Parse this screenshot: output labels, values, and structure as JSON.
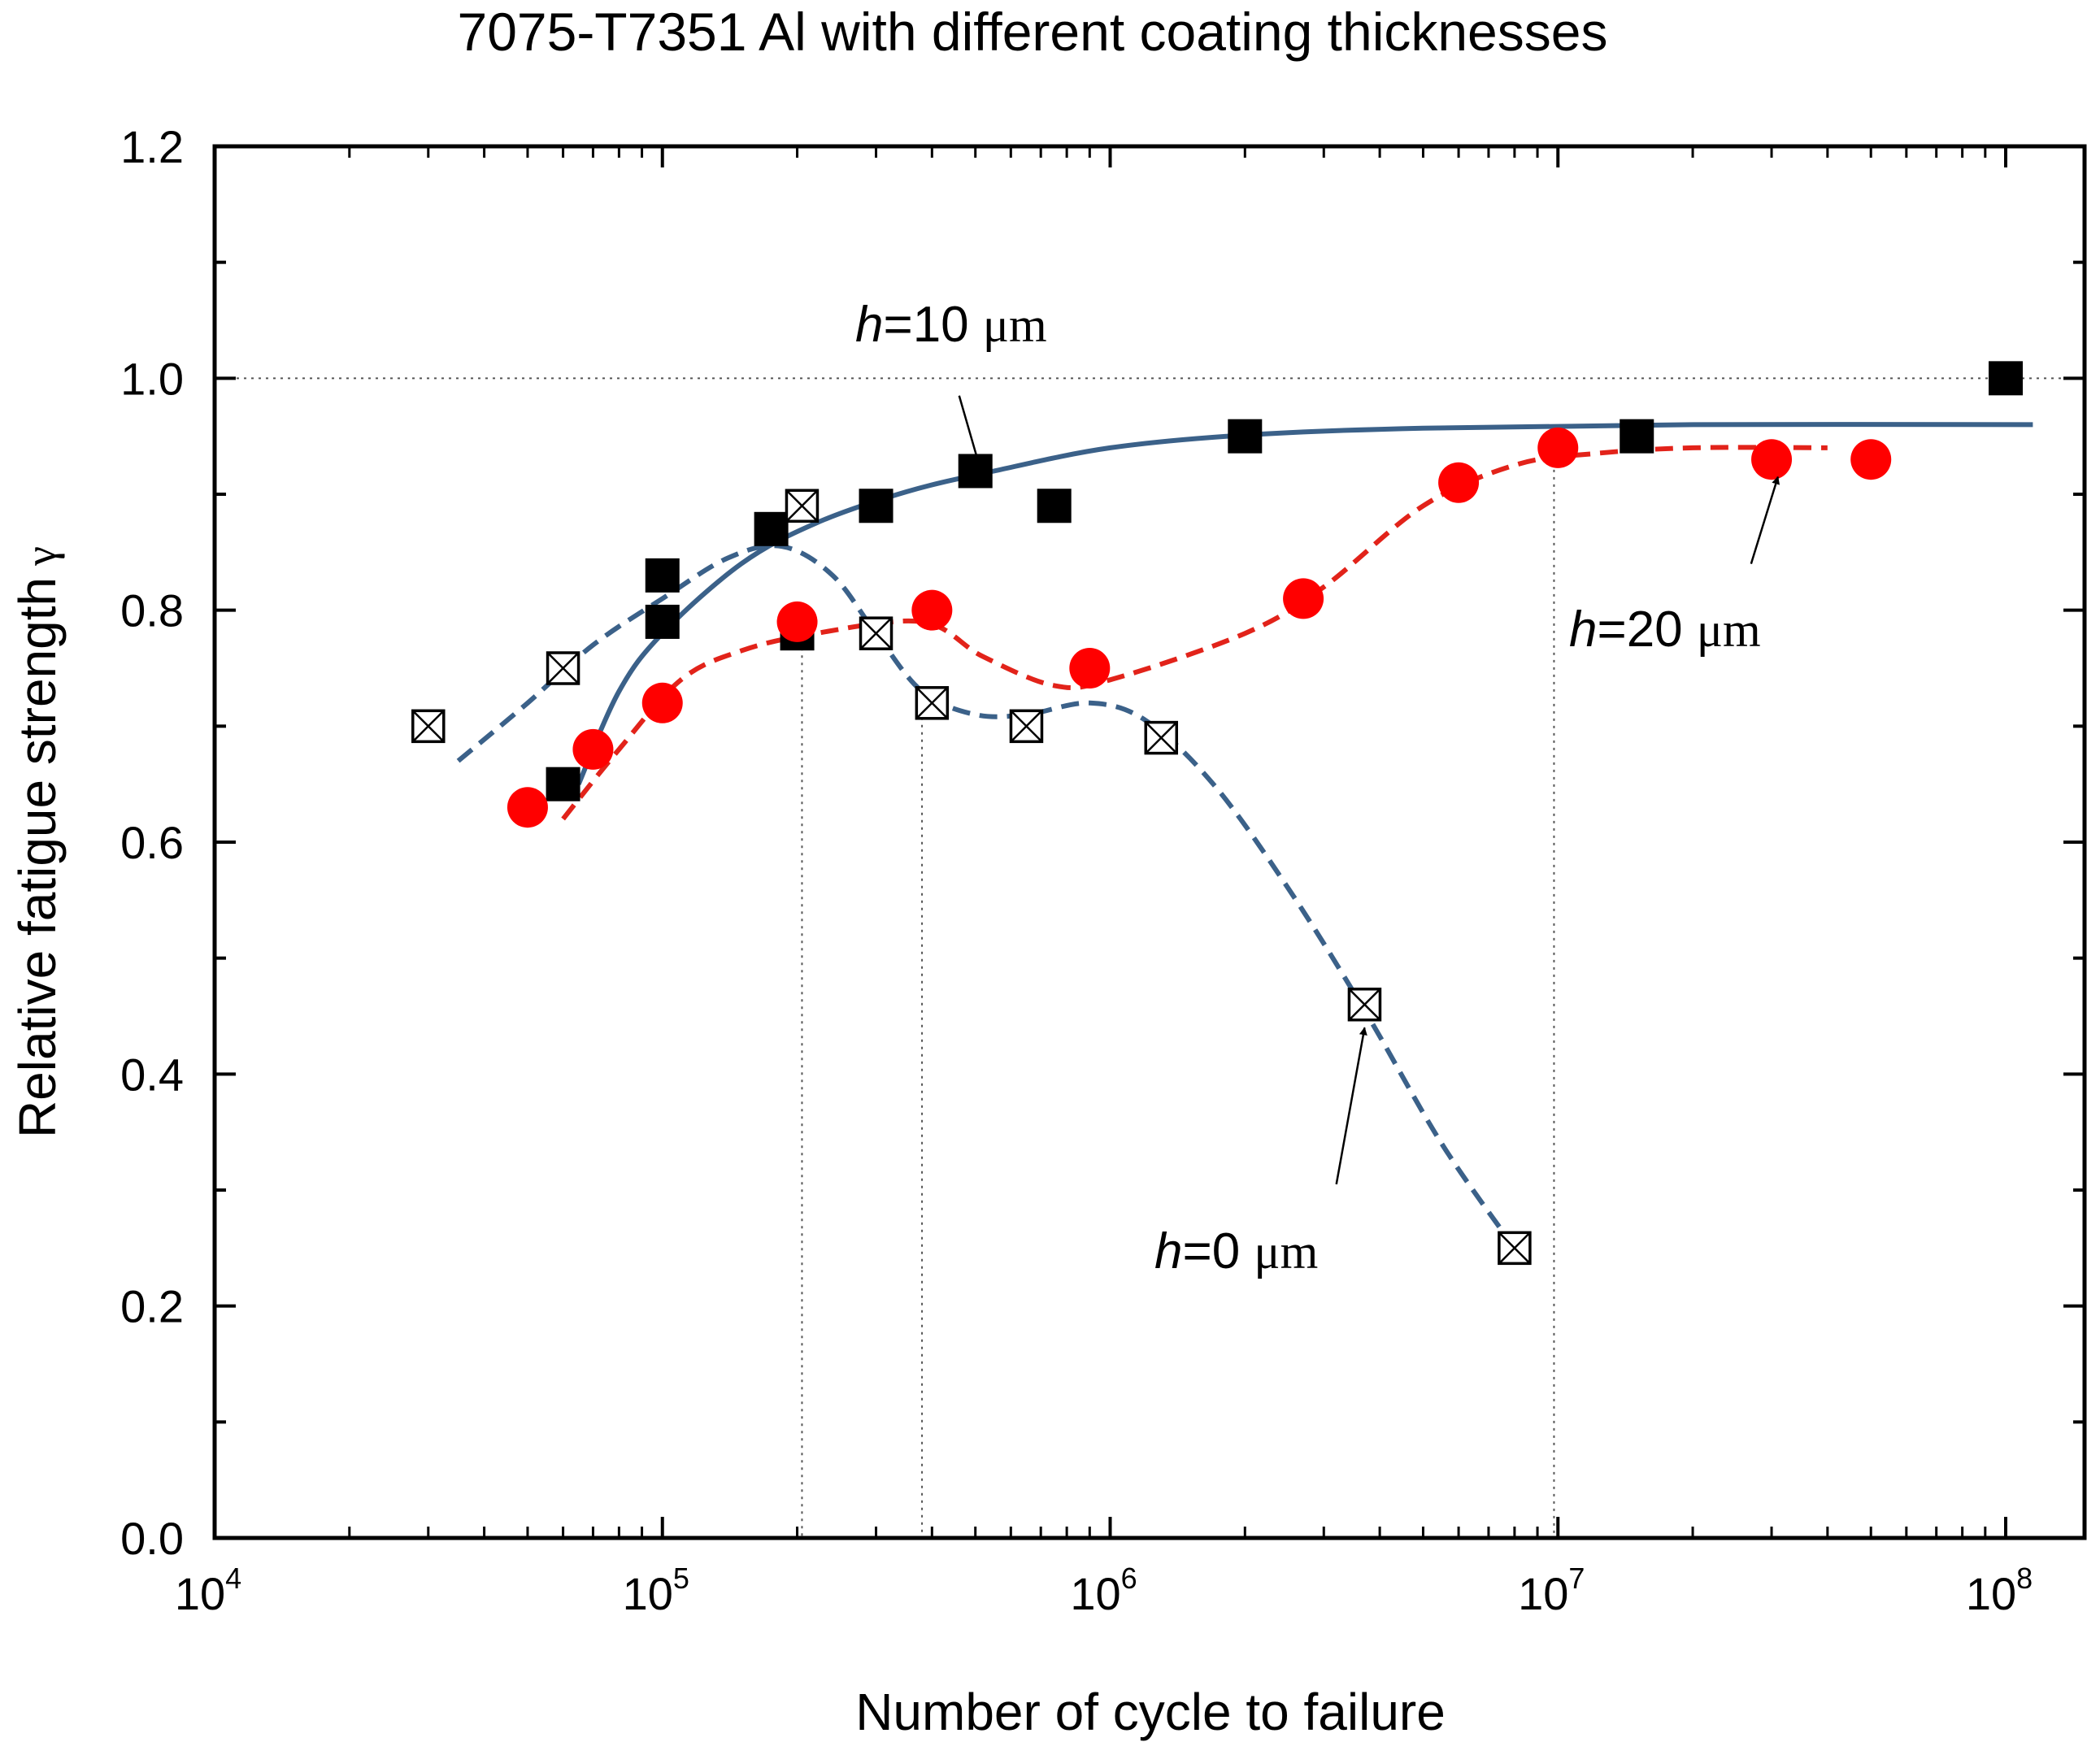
{
  "chart_data": {
    "type": "scatter",
    "title": "7075-T7351 Al with different coating thicknesses",
    "xlabel": "Number of cycle to failure",
    "ylabel": "Relative fatigue strength",
    "ylabel_symbol": "γ",
    "xscale": "log",
    "xlim": [
      10000,
      150000000
    ],
    "ylim": [
      0.0,
      1.2
    ],
    "x_ticks": [
      {
        "value": 10000,
        "base": "10",
        "exp": "4"
      },
      {
        "value": 100000,
        "base": "10",
        "exp": "5"
      },
      {
        "value": 1000000,
        "base": "10",
        "exp": "6"
      },
      {
        "value": 10000000,
        "base": "10",
        "exp": "7"
      },
      {
        "value": 100000000,
        "base": "10",
        "exp": "8"
      }
    ],
    "y_ticks": [
      {
        "value": 0.0,
        "label": "0.0"
      },
      {
        "value": 0.2,
        "label": "0.2"
      },
      {
        "value": 0.4,
        "label": "0.4"
      },
      {
        "value": 0.6,
        "label": "0.6"
      },
      {
        "value": 0.8,
        "label": "0.8"
      },
      {
        "value": 1.0,
        "label": "1.0"
      },
      {
        "value": 1.2,
        "label": "1.2"
      }
    ],
    "reference_line": {
      "y": 1.0,
      "style": "dotted"
    },
    "reference_verticals": [
      {
        "x": 205000,
        "y_top": 0.78
      },
      {
        "x": 380000,
        "y_top": 0.72
      },
      {
        "x": 9800000,
        "y_top": 0.94
      }
    ],
    "series": [
      {
        "name": "h=10 μm",
        "marker": "filled-square",
        "color": "#000000",
        "line_color": "#3b6189",
        "line_style": "solid",
        "points": [
          {
            "x": 60000,
            "y": 0.65
          },
          {
            "x": 100000,
            "y": 0.83
          },
          {
            "x": 100000,
            "y": 0.79
          },
          {
            "x": 175000,
            "y": 0.87
          },
          {
            "x": 200000,
            "y": 0.78
          },
          {
            "x": 300000,
            "y": 0.89
          },
          {
            "x": 500000,
            "y": 0.92
          },
          {
            "x": 750000,
            "y": 0.89
          },
          {
            "x": 2000000,
            "y": 0.95
          },
          {
            "x": 15000000,
            "y": 0.95
          },
          {
            "x": 100000000,
            "y": 1.0
          }
        ],
        "fit_curve": [
          {
            "x": 65000,
            "y": 0.65
          },
          {
            "x": 80000,
            "y": 0.73
          },
          {
            "x": 100000,
            "y": 0.78
          },
          {
            "x": 150000,
            "y": 0.84
          },
          {
            "x": 220000,
            "y": 0.875
          },
          {
            "x": 350000,
            "y": 0.902
          },
          {
            "x": 550000,
            "y": 0.92
          },
          {
            "x": 1000000,
            "y": 0.94
          },
          {
            "x": 2000000,
            "y": 0.951
          },
          {
            "x": 5000000,
            "y": 0.957
          },
          {
            "x": 20000000,
            "y": 0.96
          },
          {
            "x": 115000000,
            "y": 0.96
          }
        ]
      },
      {
        "name": "h=20 μm",
        "marker": "filled-circle",
        "color": "#ff0000",
        "line_color": "#e2231a",
        "line_style": "dashed",
        "points": [
          {
            "x": 50000,
            "y": 0.63
          },
          {
            "x": 70000,
            "y": 0.68
          },
          {
            "x": 100000,
            "y": 0.72
          },
          {
            "x": 200000,
            "y": 0.79
          },
          {
            "x": 400000,
            "y": 0.8
          },
          {
            "x": 900000,
            "y": 0.75
          },
          {
            "x": 2700000,
            "y": 0.81
          },
          {
            "x": 6000000,
            "y": 0.91
          },
          {
            "x": 10000000,
            "y": 0.94
          },
          {
            "x": 30000000,
            "y": 0.93
          },
          {
            "x": 50000000,
            "y": 0.93
          }
        ],
        "fit_curve": [
          {
            "x": 60000,
            "y": 0.62
          },
          {
            "x": 80000,
            "y": 0.68
          },
          {
            "x": 110000,
            "y": 0.74
          },
          {
            "x": 150000,
            "y": 0.765
          },
          {
            "x": 220000,
            "y": 0.78
          },
          {
            "x": 380000,
            "y": 0.79
          },
          {
            "x": 520000,
            "y": 0.76
          },
          {
            "x": 750000,
            "y": 0.735
          },
          {
            "x": 1000000,
            "y": 0.74
          },
          {
            "x": 2000000,
            "y": 0.78
          },
          {
            "x": 3000000,
            "y": 0.82
          },
          {
            "x": 5000000,
            "y": 0.89
          },
          {
            "x": 8000000,
            "y": 0.925
          },
          {
            "x": 12000000,
            "y": 0.935
          },
          {
            "x": 20000000,
            "y": 0.94
          },
          {
            "x": 40000000,
            "y": 0.94
          }
        ]
      },
      {
        "name": "h=0 μm",
        "marker": "crossed-square",
        "color": "#000000",
        "line_color": "#3b6189",
        "line_style": "dashed",
        "points": [
          {
            "x": 30000,
            "y": 0.7
          },
          {
            "x": 60000,
            "y": 0.75
          },
          {
            "x": 205000,
            "y": 0.89
          },
          {
            "x": 300000,
            "y": 0.78
          },
          {
            "x": 400000,
            "y": 0.72
          },
          {
            "x": 650000,
            "y": 0.7
          },
          {
            "x": 1300000,
            "y": 0.69
          },
          {
            "x": 3700000,
            "y": 0.46
          },
          {
            "x": 8000000,
            "y": 0.25
          }
        ],
        "fit_curve": [
          {
            "x": 35000,
            "y": 0.67
          },
          {
            "x": 50000,
            "y": 0.72
          },
          {
            "x": 70000,
            "y": 0.77
          },
          {
            "x": 100000,
            "y": 0.81
          },
          {
            "x": 140000,
            "y": 0.845
          },
          {
            "x": 185000,
            "y": 0.855
          },
          {
            "x": 240000,
            "y": 0.83
          },
          {
            "x": 300000,
            "y": 0.78
          },
          {
            "x": 380000,
            "y": 0.73
          },
          {
            "x": 500000,
            "y": 0.71
          },
          {
            "x": 650000,
            "y": 0.71
          },
          {
            "x": 900000,
            "y": 0.72
          },
          {
            "x": 1200000,
            "y": 0.705
          },
          {
            "x": 1700000,
            "y": 0.65
          },
          {
            "x": 2500000,
            "y": 0.56
          },
          {
            "x": 3700000,
            "y": 0.455
          },
          {
            "x": 5500000,
            "y": 0.34
          },
          {
            "x": 8000000,
            "y": 0.25
          }
        ]
      }
    ],
    "annotations": [
      {
        "italic": "h",
        "text": "=10 ",
        "unit": "μm",
        "arrow_from": {
          "x": 460000,
          "y": 0.985
        },
        "arrow_to": {
          "x": 510000,
          "y": 0.925
        }
      },
      {
        "italic": "h",
        "text": "=20 ",
        "unit": "μm",
        "arrow_from": {
          "x": 27000000,
          "y": 0.84
        },
        "arrow_to": {
          "x": 31000000,
          "y": 0.915
        }
      },
      {
        "italic": "h",
        "text": "=0 ",
        "unit": "μm",
        "arrow_from": {
          "x": 3200000,
          "y": 0.305
        },
        "arrow_to": {
          "x": 3700000,
          "y": 0.44
        }
      }
    ]
  }
}
